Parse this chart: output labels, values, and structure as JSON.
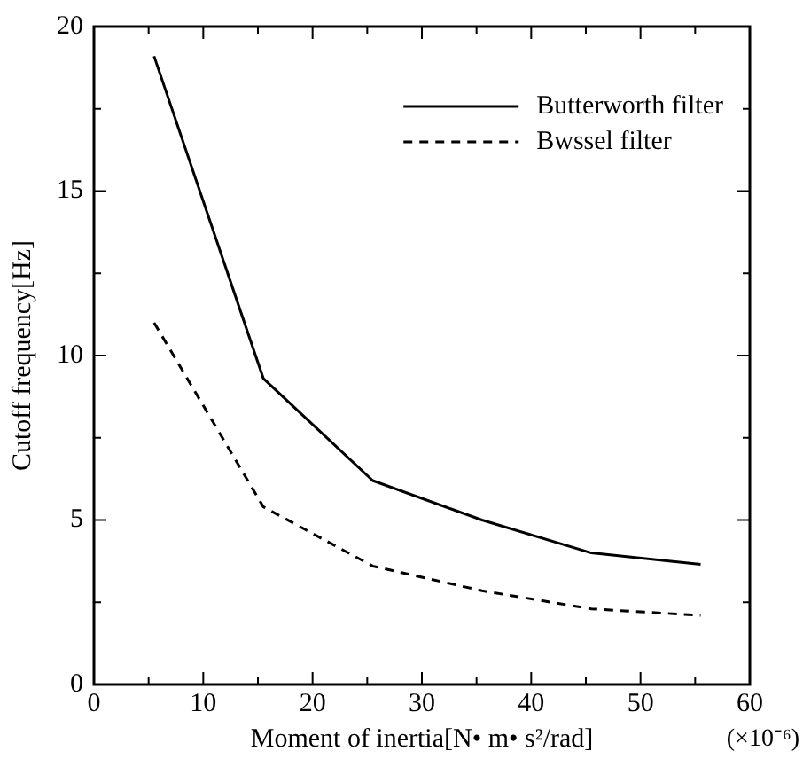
{
  "chart_data": {
    "type": "line",
    "xlabel": "Moment of inertia[N• m• s²/rad]",
    "ylabel": "Cutoff frequency[Hz]",
    "annotations": [
      "(×10⁻⁶)"
    ],
    "x": [
      5.5,
      15.5,
      25.5,
      35.5,
      45.5,
      55.5
    ],
    "series": [
      {
        "name": "Butterworth filter",
        "color": "#000000",
        "line_style": "solid",
        "values": [
          19.1,
          9.3,
          6.2,
          5.0,
          4.0,
          3.65
        ]
      },
      {
        "name": "Bwssel filter",
        "color": "#000000",
        "line_style": "dashed",
        "values": [
          11.0,
          5.4,
          3.6,
          2.85,
          2.3,
          2.1
        ]
      }
    ],
    "xlim": [
      0,
      60
    ],
    "ylim": [
      0,
      20
    ],
    "xticks": [
      0,
      {
        "value": 5,
        "label": null
      },
      10,
      {
        "value": 15,
        "label": null
      },
      20,
      {
        "value": 25,
        "label": null
      },
      30,
      {
        "value": 35,
        "label": null
      },
      40,
      {
        "value": 45,
        "label": null
      },
      50,
      {
        "value": 55,
        "label": null
      },
      60
    ],
    "yticks": [
      0,
      {
        "value": 2.5,
        "label": null
      },
      5,
      {
        "value": 7.5,
        "label": null
      },
      10,
      {
        "value": 12.5,
        "label": null
      },
      15,
      {
        "value": 17.5,
        "label": null
      },
      20
    ],
    "grid": false,
    "legend": "top right",
    "marker": "none"
  }
}
